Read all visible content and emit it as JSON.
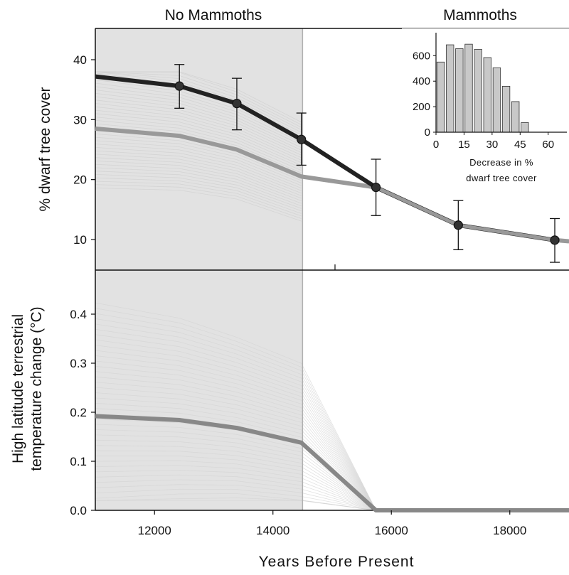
{
  "chart_data": [
    {
      "type": "line",
      "panel": "top",
      "region_labels": [
        "No Mammoths",
        "Mammoths"
      ],
      "shaded_region_x": [
        11000,
        14500
      ],
      "ylabel": "% dwarf tree cover",
      "xlim": [
        11000,
        19000
      ],
      "ylim": [
        4,
        45
      ],
      "yticks": [
        10,
        20,
        30,
        40
      ],
      "series": [
        {
          "color": "#111111",
          "markers": true,
          "error_bars": true,
          "x": [
            11000,
            12420,
            13390,
            14480,
            15740,
            17130,
            18760
          ],
          "y": [
            37.2,
            35.6,
            32.7,
            26.7,
            18.7,
            12.4,
            9.9
          ],
          "err_low": [
            null,
            31.9,
            28.3,
            22.4,
            14.0,
            8.3,
            6.2
          ],
          "err_high": [
            null,
            39.2,
            36.9,
            31.1,
            23.4,
            16.5,
            13.5
          ]
        },
        {
          "color": "#999999",
          "markers": false,
          "x": [
            11000,
            12420,
            13390,
            14480,
            15740,
            17130,
            18760,
            19000
          ],
          "y": [
            28.5,
            27.3,
            25.0,
            20.5,
            18.7,
            12.4,
            9.9,
            9.7
          ]
        }
      ],
      "inset": {
        "type": "bar",
        "xlabel": "Decrease in % dwarf tree  cover",
        "xlabel_lines": [
          "Decrease in %",
          "dwarf tree  cover"
        ],
        "x": [
          2.5,
          7.5,
          12.5,
          17.5,
          22.5,
          27.5,
          32.5,
          37.5,
          42.5,
          47.5,
          52.5,
          57.5
        ],
        "values": [
          550,
          685,
          655,
          690,
          650,
          585,
          505,
          360,
          240,
          75,
          0,
          0
        ],
        "xticks": [
          0,
          15,
          30,
          45,
          60
        ],
        "yticks": [
          0,
          200,
          400,
          600
        ],
        "xlim": [
          0,
          70
        ],
        "ylim": [
          0,
          780
        ],
        "bar_color": "#c8c8c8"
      }
    },
    {
      "type": "line",
      "panel": "bottom",
      "ylabel": "High latitude terrestrial temperature change (°C)",
      "ylabel_lines": [
        "High latitude terrestrial",
        "temperature change (°C)"
      ],
      "xlabel": "Years Before Present",
      "xlim": [
        11000,
        19000
      ],
      "ylim": [
        0,
        0.5
      ],
      "yticks": [
        0.0,
        0.1,
        0.2,
        0.3,
        0.4
      ],
      "xticks": [
        12000,
        14000,
        16000,
        18000
      ],
      "series": [
        {
          "color": "#888888",
          "x": [
            11000,
            12420,
            13390,
            14480,
            15740,
            17130,
            18760,
            19000
          ],
          "y": [
            0.192,
            0.184,
            0.168,
            0.138,
            0.0,
            0.0,
            0.0,
            0.0
          ]
        }
      ]
    }
  ]
}
